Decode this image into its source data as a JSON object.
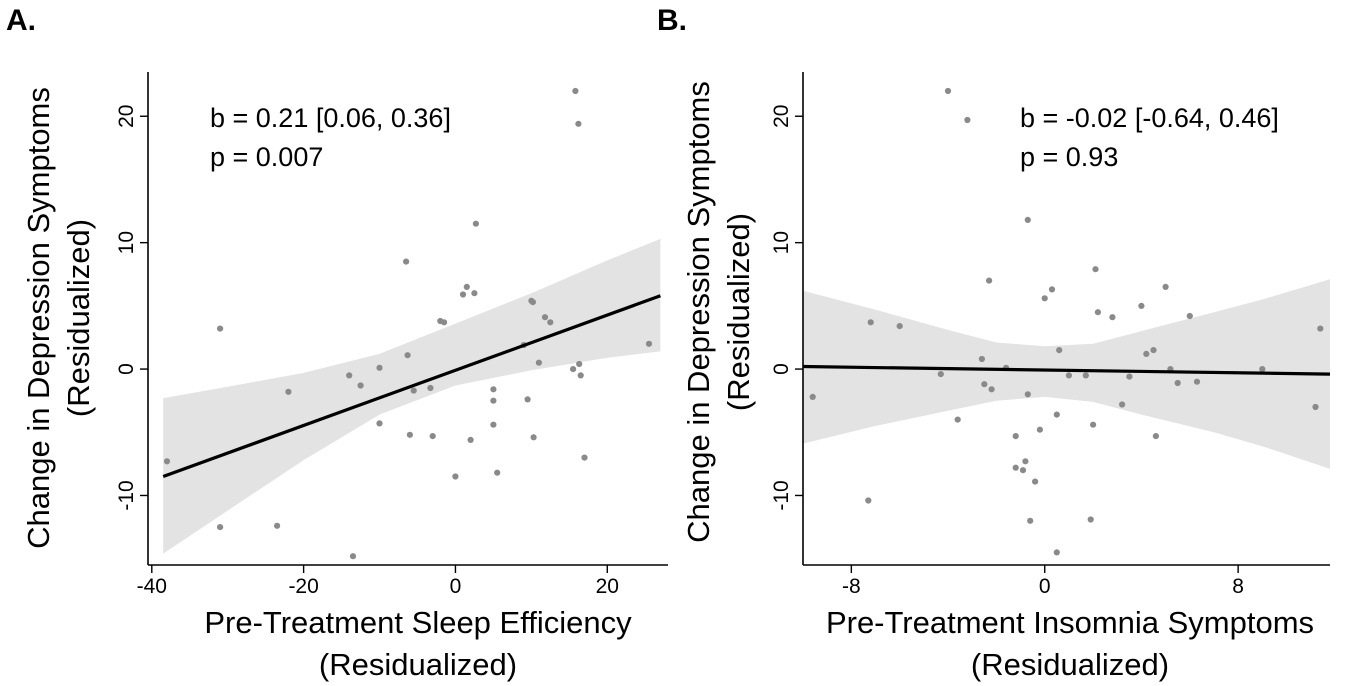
{
  "chart_data": [
    {
      "panel": "A.",
      "type": "scatter",
      "xlabel": [
        "Pre-Treatment Sleep Efficiency",
        "(Residualized)"
      ],
      "ylabel": [
        "Change in Depression Symptoms",
        "(Residualized)"
      ],
      "xlim": [
        -40.5,
        28
      ],
      "ylim": [
        -15.5,
        23.5
      ],
      "xticks": [
        -40,
        -20,
        0,
        20
      ],
      "yticks": [
        -10,
        0,
        10,
        20
      ],
      "annotation": [
        "b = 0.21 [0.06, 0.36]",
        "p = 0.007"
      ],
      "fit": {
        "x0": -38.5,
        "x1": 27,
        "y0": -8.5,
        "y1": 5.8
      },
      "band": {
        "x": [
          -38.5,
          -30,
          -20,
          -10,
          0,
          10,
          20,
          27
        ],
        "upper": [
          -2.3,
          -1.4,
          -0.3,
          1.2,
          3.6,
          6.0,
          8.6,
          10.3
        ],
        "lower": [
          -14.6,
          -11.2,
          -7.2,
          -3.6,
          -1.3,
          -0.1,
          0.9,
          1.4
        ]
      },
      "points": [
        {
          "x": -38,
          "y": -7.3
        },
        {
          "x": -31,
          "y": 3.2
        },
        {
          "x": -31,
          "y": -12.5
        },
        {
          "x": -23.5,
          "y": -12.4
        },
        {
          "x": -22,
          "y": -1.8
        },
        {
          "x": -14,
          "y": -0.5
        },
        {
          "x": -13.5,
          "y": -14.8
        },
        {
          "x": -12.5,
          "y": -1.3
        },
        {
          "x": -10,
          "y": 0.1
        },
        {
          "x": -10,
          "y": -4.3
        },
        {
          "x": -6.5,
          "y": 8.5
        },
        {
          "x": -6.3,
          "y": 1.1
        },
        {
          "x": -6,
          "y": -5.2
        },
        {
          "x": -5.5,
          "y": -1.7
        },
        {
          "x": -3.3,
          "y": -1.5
        },
        {
          "x": -3,
          "y": -5.3
        },
        {
          "x": -2,
          "y": 3.8
        },
        {
          "x": -1.5,
          "y": 3.7
        },
        {
          "x": 0,
          "y": -8.5
        },
        {
          "x": 1,
          "y": 5.9
        },
        {
          "x": 1.5,
          "y": 6.5
        },
        {
          "x": 2,
          "y": -5.6
        },
        {
          "x": 2.5,
          "y": 6
        },
        {
          "x": 2.7,
          "y": 11.5
        },
        {
          "x": 5,
          "y": -1.6
        },
        {
          "x": 5,
          "y": -2.5
        },
        {
          "x": 5,
          "y": -4.4
        },
        {
          "x": 5.5,
          "y": -8.2
        },
        {
          "x": 9,
          "y": 1.9
        },
        {
          "x": 9.5,
          "y": -2.4
        },
        {
          "x": 10,
          "y": 5.4
        },
        {
          "x": 10.2,
          "y": 5.3
        },
        {
          "x": 10.3,
          "y": -5.4
        },
        {
          "x": 11,
          "y": 0.5
        },
        {
          "x": 11.8,
          "y": 4.1
        },
        {
          "x": 12.5,
          "y": 3.7
        },
        {
          "x": 15.5,
          "y": 0
        },
        {
          "x": 15.8,
          "y": 22
        },
        {
          "x": 16.2,
          "y": 19.4
        },
        {
          "x": 16.3,
          "y": 0.4
        },
        {
          "x": 16.5,
          "y": -0.5
        },
        {
          "x": 17,
          "y": -7
        },
        {
          "x": 25.5,
          "y": 2
        }
      ]
    },
    {
      "panel": "B.",
      "type": "scatter",
      "xlabel": [
        "Pre-Treatment Insomnia Symptoms",
        "(Residualized)"
      ],
      "ylabel": [
        "Change in Depression Symptoms",
        "(Residualized)"
      ],
      "xlim": [
        -10,
        11.8
      ],
      "ylim": [
        -15.5,
        23.5
      ],
      "xticks": [
        -8,
        0,
        8
      ],
      "yticks": [
        -10,
        0,
        10,
        20
      ],
      "annotation": [
        "b = -0.02 [-0.64, 0.46]",
        "p = 0.93"
      ],
      "fit": {
        "x0": -10,
        "x1": 11.8,
        "y0": 0.2,
        "y1": -0.4
      },
      "band": {
        "x": [
          -10,
          -7,
          -4,
          -2,
          0,
          2,
          4,
          7,
          9,
          11.8
        ],
        "upper": [
          6.2,
          4.7,
          3.1,
          2.1,
          1.8,
          2.0,
          3.0,
          4.5,
          5.5,
          7.1
        ],
        "lower": [
          -5.9,
          -4.5,
          -3.3,
          -2.5,
          -2.2,
          -2.6,
          -3.6,
          -5.0,
          -6.1,
          -7.9
        ]
      },
      "points": [
        {
          "x": -9.6,
          "y": -2.2
        },
        {
          "x": -7.3,
          "y": -10.4
        },
        {
          "x": -7.2,
          "y": 3.7
        },
        {
          "x": -6,
          "y": 3.4
        },
        {
          "x": -4.3,
          "y": -0.4
        },
        {
          "x": -4,
          "y": 22
        },
        {
          "x": -3.6,
          "y": -4
        },
        {
          "x": -3.2,
          "y": 19.7
        },
        {
          "x": -2.6,
          "y": 0.8
        },
        {
          "x": -2.5,
          "y": -1.2
        },
        {
          "x": -2.3,
          "y": 7
        },
        {
          "x": -2.2,
          "y": -1.6
        },
        {
          "x": -1.6,
          "y": 0.1
        },
        {
          "x": -1.2,
          "y": -5.3
        },
        {
          "x": -1.2,
          "y": -7.8
        },
        {
          "x": -0.9,
          "y": -8
        },
        {
          "x": -0.8,
          "y": -7.3
        },
        {
          "x": -0.7,
          "y": -2
        },
        {
          "x": -0.7,
          "y": 11.8
        },
        {
          "x": -0.6,
          "y": -12
        },
        {
          "x": -0.4,
          "y": -8.9
        },
        {
          "x": -0.2,
          "y": -4.8
        },
        {
          "x": 0,
          "y": 5.6
        },
        {
          "x": 0.3,
          "y": 6.3
        },
        {
          "x": 0.5,
          "y": -3.6
        },
        {
          "x": 0.5,
          "y": -14.5
        },
        {
          "x": 0.6,
          "y": 1.5
        },
        {
          "x": 1,
          "y": -0.5
        },
        {
          "x": 1.7,
          "y": -0.5
        },
        {
          "x": 1.9,
          "y": -11.9
        },
        {
          "x": 2,
          "y": -4.4
        },
        {
          "x": 2.1,
          "y": 7.9
        },
        {
          "x": 2.2,
          "y": 4.5
        },
        {
          "x": 2.8,
          "y": 4.1
        },
        {
          "x": 3.2,
          "y": -2.8
        },
        {
          "x": 3.5,
          "y": -0.6
        },
        {
          "x": 4,
          "y": 5
        },
        {
          "x": 4.2,
          "y": 1.2
        },
        {
          "x": 4.5,
          "y": 1.5
        },
        {
          "x": 4.6,
          "y": -5.3
        },
        {
          "x": 5,
          "y": 6.5
        },
        {
          "x": 5.2,
          "y": 0
        },
        {
          "x": 5.5,
          "y": -1.1
        },
        {
          "x": 6,
          "y": 4.2
        },
        {
          "x": 6.3,
          "y": -1
        },
        {
          "x": 9,
          "y": 0
        },
        {
          "x": 11.2,
          "y": -3
        },
        {
          "x": 11.4,
          "y": 3.2
        }
      ]
    }
  ]
}
